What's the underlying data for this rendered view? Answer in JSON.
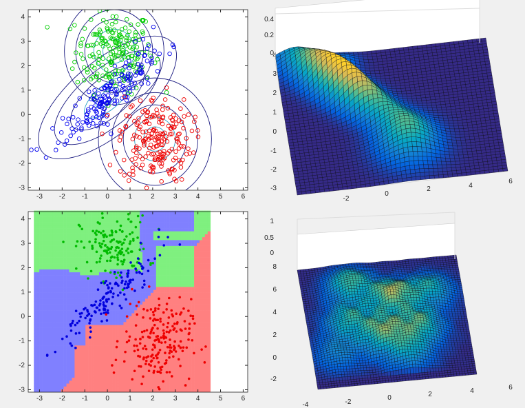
{
  "chart_data": [
    {
      "type": "scatter",
      "panel": "top-left",
      "title": "",
      "xlim": [
        -3.5,
        6.2
      ],
      "ylim": [
        -3.1,
        4.3
      ],
      "xticks": [
        "-3",
        "-2",
        "-1",
        "0",
        "1",
        "2",
        "3",
        "4",
        "5",
        "6"
      ],
      "yticks": [
        "-3",
        "-2",
        "-1",
        "0",
        "1",
        "2",
        "3",
        "4"
      ],
      "series": [
        {
          "cluster": "green",
          "color": "#00cc00",
          "marker": "open-circle",
          "center": [
            0.3,
            2.6
          ],
          "spread": [
            0.85,
            0.85
          ],
          "count": 200
        },
        {
          "cluster": "blue",
          "color": "#0000ee",
          "marker": "open-circle",
          "center": [
            0.0,
            0.7
          ],
          "spread": [
            1.1,
            0.75
          ],
          "count": 170
        },
        {
          "cluster": "red",
          "color": "#ee0000",
          "marker": "open-circle",
          "center": [
            2.1,
            -1.0
          ],
          "spread": [
            0.8,
            0.9
          ],
          "count": 210
        }
      ],
      "contours": [
        {
          "color": "#1a1a80",
          "center": [
            0.3,
            2.6
          ],
          "radii": [
            0.5,
            0.9,
            1.3,
            1.7,
            2.2
          ]
        },
        {
          "color": "#1a1a80",
          "center": [
            0.0,
            0.7
          ],
          "radii": [
            0.5,
            1.0,
            1.6,
            2.3,
            3.0
          ],
          "angle_deg": 40
        },
        {
          "color": "#1a1a80",
          "center": [
            2.1,
            -1.0
          ],
          "radii": [
            0.5,
            0.9,
            1.4,
            1.9,
            2.5
          ]
        }
      ],
      "grid": false
    },
    {
      "type": "surface",
      "panel": "top-right",
      "colormap": "parula",
      "zticks": [
        "0",
        "0.2",
        "0.4"
      ],
      "yticks": [
        "-3",
        "-2",
        "-1",
        "0",
        "1",
        "2",
        "3",
        "4"
      ],
      "xticks": [
        "-2",
        "0",
        "2",
        "4",
        "6"
      ]
    },
    {
      "type": "scatter",
      "panel": "bottom-left",
      "subtype": "decision-regions",
      "xlim": [
        -3.5,
        6.2
      ],
      "ylim": [
        -3.1,
        4.3
      ],
      "xticks": [
        "-3",
        "-2",
        "-1",
        "0",
        "1",
        "2",
        "3",
        "4",
        "5",
        "6"
      ],
      "yticks": [
        "-3",
        "-2",
        "-1",
        "0",
        "1",
        "2",
        "3",
        "4"
      ],
      "regions": [
        {
          "class": "green",
          "color": "#7ff07f"
        },
        {
          "class": "blue",
          "color": "#8080ff"
        },
        {
          "class": "red",
          "color": "#ff8080"
        }
      ],
      "series": [
        {
          "cluster": "green",
          "color": "#00bb00",
          "marker": "filled-dot"
        },
        {
          "cluster": "blue",
          "color": "#0000dd",
          "marker": "filled-dot"
        },
        {
          "cluster": "red",
          "color": "#ee0000",
          "marker": "filled-dot"
        }
      ]
    },
    {
      "type": "surface",
      "panel": "bottom-right",
      "colormap": "parula",
      "zticks": [
        "0",
        "0.5",
        "1"
      ],
      "yticks": [
        "-2",
        "0",
        "2",
        "4",
        "6",
        "8"
      ],
      "xticks": [
        "-4",
        "-2",
        "0",
        "2",
        "4",
        "6"
      ]
    }
  ]
}
